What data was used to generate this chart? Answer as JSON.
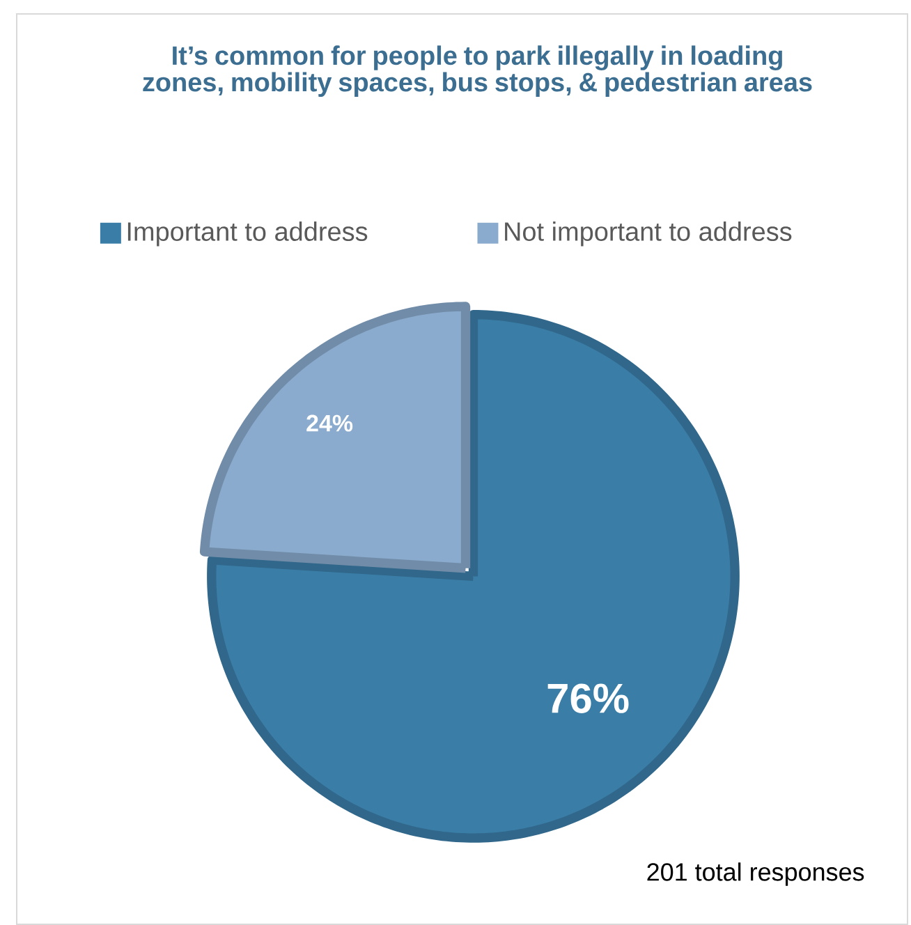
{
  "chart_data": {
    "type": "pie",
    "title": "It’s common for people to park illegally in loading zones, mobility spaces, bus stops, & pedestrian areas",
    "categories": [
      "Important to address",
      "Not important to address"
    ],
    "values": [
      76,
      24
    ],
    "value_labels": [
      "76%",
      "24%"
    ],
    "colors": [
      "#3a7ea8",
      "#8aabcd"
    ],
    "data_labels": true,
    "legend": "top",
    "annotations": [
      "201 total responses"
    ]
  }
}
